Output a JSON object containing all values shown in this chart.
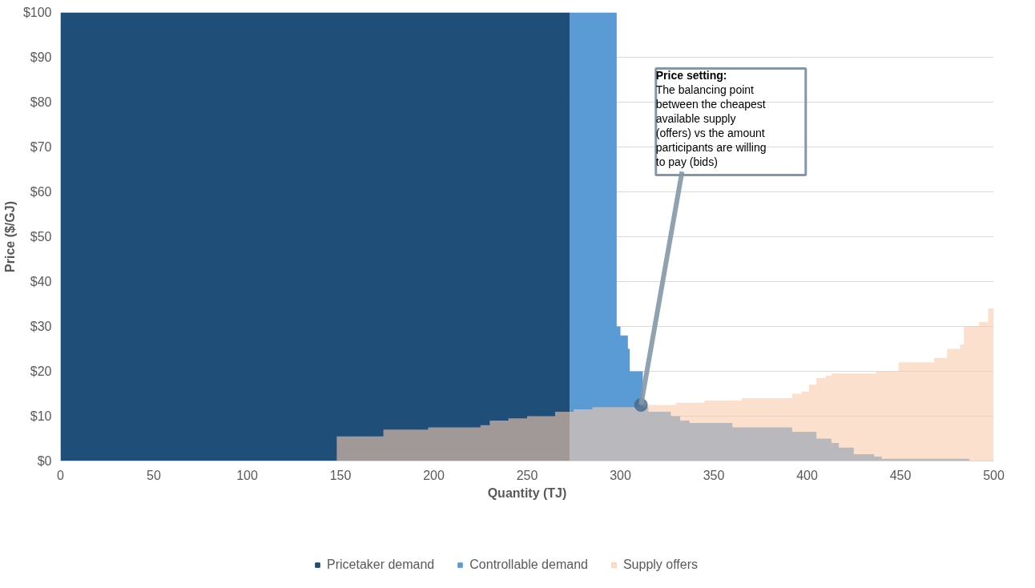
{
  "chart_data": {
    "type": "area",
    "xlabel": "Quantity (TJ)",
    "ylabel": "Price ($/GJ)",
    "xlim": [
      0,
      500
    ],
    "xticks": [
      0,
      50,
      100,
      150,
      200,
      250,
      300,
      350,
      400,
      450,
      500
    ],
    "ylim": [
      0,
      100
    ],
    "yticks": [
      {
        "value": 0,
        "label": "$0"
      },
      {
        "value": 10,
        "label": "$10"
      },
      {
        "value": 20,
        "label": "$20"
      },
      {
        "value": 30,
        "label": "$30"
      },
      {
        "value": 40,
        "label": "$40"
      },
      {
        "value": 50,
        "label": "$50"
      },
      {
        "value": 60,
        "label": "$60"
      },
      {
        "value": 70,
        "label": "$70"
      },
      {
        "value": 80,
        "label": "$80"
      },
      {
        "value": 90,
        "label": "$90"
      },
      {
        "value": 100,
        "label": "$100"
      }
    ],
    "grid": "y",
    "legend": "bottom",
    "series": [
      {
        "name": "Pricetaker demand",
        "color": "#1f4e79",
        "x": [
          0,
          273
        ],
        "values": [
          100,
          100
        ]
      },
      {
        "name": "Controllable demand",
        "color": "#5b9bd5",
        "x": [
          273,
          298,
          300,
          304,
          305,
          312,
          315,
          327,
          332,
          337,
          360,
          392,
          405,
          413,
          417,
          425,
          436,
          440,
          487
        ],
        "values": [
          100,
          30,
          28,
          25,
          20,
          12,
          11,
          10,
          9,
          8.5,
          7.5,
          6.5,
          5,
          4,
          3,
          1.5,
          1,
          0.5,
          0.5
        ]
      },
      {
        "name": "Supply offers",
        "color": "#f8cbad",
        "x": [
          148,
          173,
          197,
          225,
          230,
          240,
          250,
          265,
          275,
          285,
          310,
          330,
          345,
          365,
          392,
          397,
          401,
          405,
          410,
          413,
          437,
          449,
          468,
          475,
          482,
          484,
          492,
          497,
          500
        ],
        "values": [
          5.5,
          7,
          7.5,
          8,
          9,
          9.5,
          10,
          11,
          11.5,
          12,
          12.5,
          13,
          13.5,
          14,
          15,
          15.5,
          17,
          18.5,
          19,
          19.5,
          20,
          22,
          23,
          25,
          26,
          30,
          31,
          34,
          34
        ]
      }
    ],
    "annotations": [
      {
        "text": "Price setting:\nThe balancing point between the cheapest available supply (offers) vs the amount participants are willing to pay (bids)",
        "x": 311,
        "y": 12.5
      }
    ]
  }
}
